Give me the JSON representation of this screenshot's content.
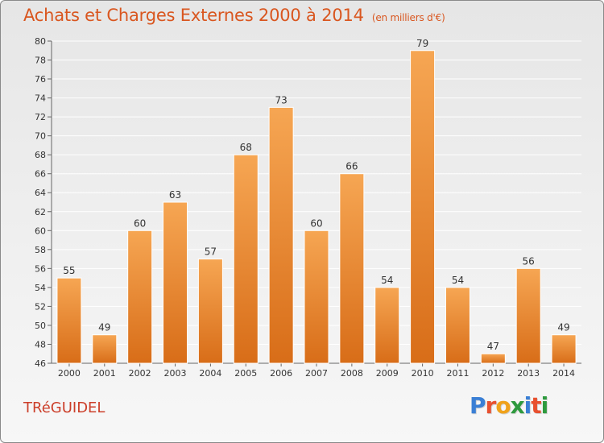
{
  "title": "Achats et Charges Externes 2000 à 2014",
  "unit": "(en milliers d'€)",
  "commune": "TRéGUIDEL",
  "logo": {
    "letters": [
      "P",
      "r",
      "o",
      "x",
      "i",
      "t",
      "i"
    ],
    "colors": [
      "#3a7fd5",
      "#e8502f",
      "#f0a21a",
      "#2e9a3e",
      "#3a7fd5",
      "#e8502f",
      "#2e9a3e"
    ]
  },
  "colors": {
    "bar_top": "#f6a653",
    "bar_bottom": "#d86d18",
    "title": "#d9561f",
    "commune": "#cc3f2a"
  },
  "chart_data": {
    "type": "bar",
    "categories": [
      "2000",
      "2001",
      "2002",
      "2003",
      "2004",
      "2005",
      "2006",
      "2007",
      "2008",
      "2009",
      "2010",
      "2011",
      "2012",
      "2013",
      "2014"
    ],
    "values": [
      55,
      49,
      60,
      63,
      57,
      68,
      73,
      60,
      66,
      54,
      79,
      54,
      47,
      56,
      49
    ],
    "ylim": [
      46,
      80
    ],
    "yticks": [
      46,
      48,
      50,
      52,
      54,
      56,
      58,
      60,
      62,
      64,
      66,
      68,
      70,
      72,
      74,
      76,
      78,
      80
    ],
    "grid": true
  }
}
